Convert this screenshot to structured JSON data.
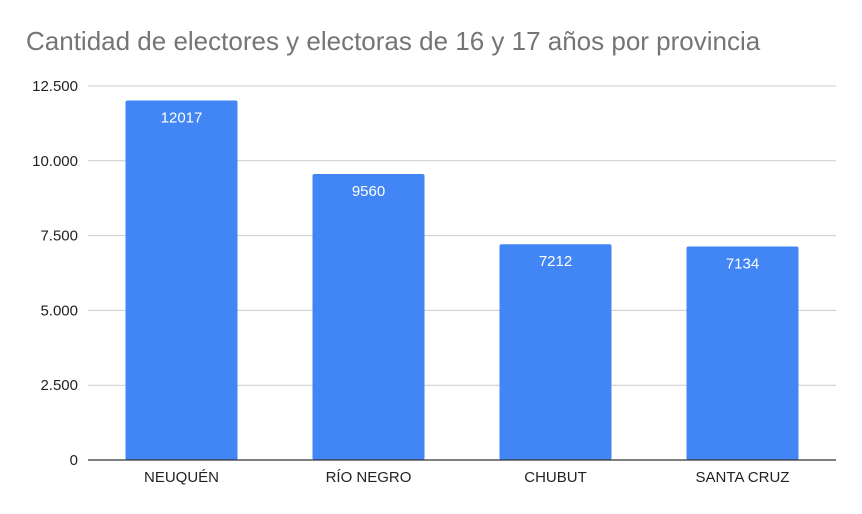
{
  "chart_data": {
    "type": "bar",
    "title": "Cantidad de electores y electoras de 16 y 17 años por provincia",
    "xlabel": "",
    "ylabel": "",
    "categories": [
      "NEUQUÉN",
      "RÍO NEGRO",
      "CHUBUT",
      "SANTA CRUZ"
    ],
    "values": [
      12017,
      9560,
      7212,
      7134
    ],
    "data_labels": [
      "12017",
      "9560",
      "7212",
      "7134"
    ],
    "ylim": [
      0,
      12500
    ],
    "yticks": [
      0,
      2500,
      5000,
      7500,
      10000,
      12500
    ],
    "ytick_labels": [
      "0",
      "2.500",
      "5.000",
      "7.500",
      "10.000",
      "12.500"
    ],
    "grid": true,
    "legend": "none",
    "bar_color": "#4285f4",
    "grid_color": "#cccccc",
    "axis_color": "#333333",
    "title_color": "#757575"
  }
}
